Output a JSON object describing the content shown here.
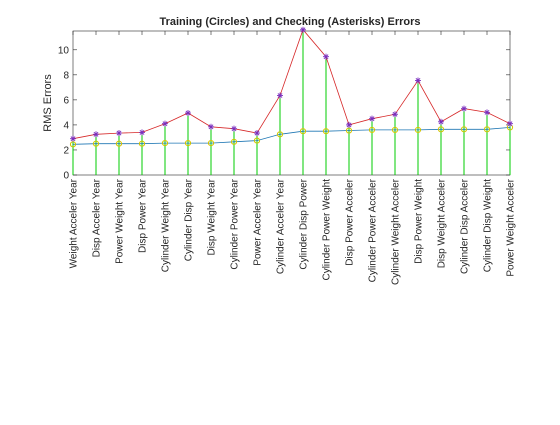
{
  "chart_data": {
    "type": "line",
    "title": "Training (Circles) and Checking (Asterisks) Errors",
    "ylabel": "RMS Errors",
    "xlabel": "",
    "ylim": [
      0,
      11.5
    ],
    "yticks": [
      0,
      2,
      4,
      6,
      8,
      10
    ],
    "grid": false,
    "categories": [
      "Weight Acceler Year",
      "Disp Acceler Year",
      "Power Weight Year",
      "Disp Power Year",
      "Cylinder Weight Year",
      "Cylinder Disp Year",
      "Disp Weight Year",
      "Cylinder Power Year",
      "Power Acceler Year",
      "Cylinder Acceler Year",
      "Cylinder Disp Power",
      "Cylinder Power Weight",
      "Disp Power Acceler",
      "Cylinder Power Acceler",
      "Cylinder Weight Acceler",
      "Disp Power Weight",
      "Disp Weight Acceler",
      "Cylinder Disp Acceler",
      "Cylinder Disp Weight",
      "Power Weight Acceler"
    ],
    "series": [
      {
        "marker": "circle",
        "color": "#1f77b4",
        "values": [
          2.45,
          2.5,
          2.5,
          2.5,
          2.55,
          2.55,
          2.55,
          2.65,
          2.75,
          3.25,
          3.5,
          3.5,
          3.55,
          3.6,
          3.6,
          3.6,
          3.65,
          3.65,
          3.65,
          3.8
        ]
      },
      {
        "marker": "asterisk",
        "color": "#d62728",
        "values": [
          2.9,
          3.25,
          3.35,
          3.4,
          4.1,
          4.95,
          3.85,
          3.7,
          3.35,
          6.35,
          11.6,
          9.45,
          4.0,
          4.5,
          4.85,
          7.55,
          4.25,
          5.3,
          5.0,
          4.1
        ]
      }
    ],
    "stem_color": "#00cc00",
    "marker_circle_color": "#d4c400",
    "marker_star_color": "#7b2fbe"
  }
}
